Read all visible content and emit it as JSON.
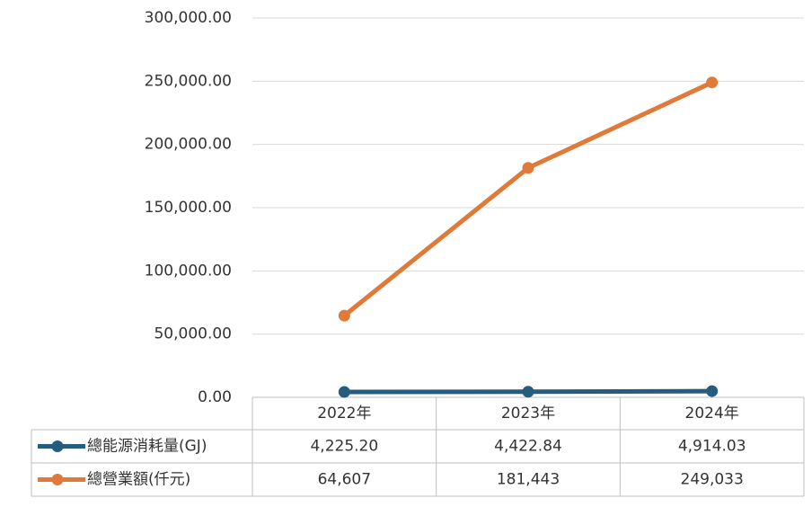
{
  "chart_data": {
    "type": "line",
    "categories": [
      "2022年",
      "2023年",
      "2024年"
    ],
    "series": [
      {
        "name": "總能源消耗量(GJ)",
        "color": "#265c7d",
        "values": [
          4225.2,
          4422.84,
          4914.03
        ],
        "value_labels": [
          "4,225.20",
          "4,422.84",
          "4,914.03"
        ]
      },
      {
        "name": "總營業額(仟元)",
        "color": "#e07a3a",
        "values": [
          64607,
          181443,
          249033
        ],
        "value_labels": [
          "64,607",
          "181,443",
          "249,033"
        ]
      }
    ],
    "ylim": [
      0,
      300000
    ],
    "yticks": [
      {
        "value": 0,
        "label": "0.00"
      },
      {
        "value": 50000,
        "label": "50,000.00"
      },
      {
        "value": 100000,
        "label": "100,000.00"
      },
      {
        "value": 150000,
        "label": "150,000.00"
      },
      {
        "value": 200000,
        "label": "200,000.00"
      },
      {
        "value": 250000,
        "label": "250,000.00"
      },
      {
        "value": 300000,
        "label": "300,000.00"
      }
    ],
    "grid": true
  }
}
